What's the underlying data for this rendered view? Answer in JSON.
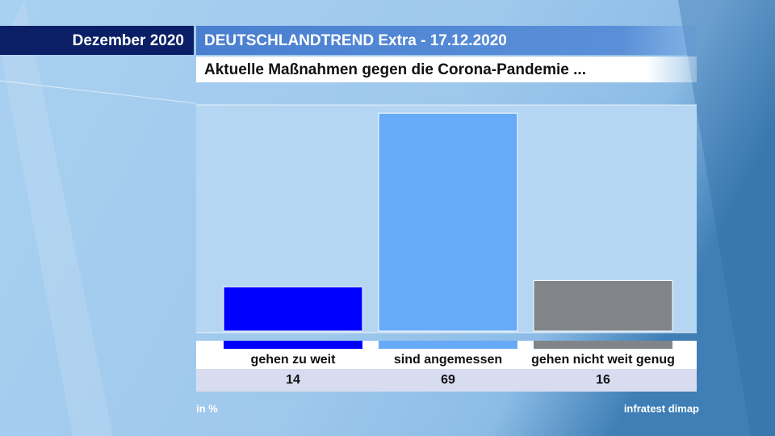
{
  "chart_data": {
    "type": "bar",
    "date_label": "Dezember 2020",
    "title": "DEUTSCHLANDTREND Extra - 17.12.2020",
    "subtitle": "Aktuelle Maßnahmen gegen die Corona-Pandemie ...",
    "categories": [
      "gehen zu weit",
      "sind angemessen",
      "gehen nicht weit genug"
    ],
    "values": [
      14,
      69,
      16
    ],
    "colors": [
      "#0000ff",
      "#66aaf8",
      "#818589"
    ],
    "unit_label": "in %",
    "source": "infratest dimap"
  }
}
